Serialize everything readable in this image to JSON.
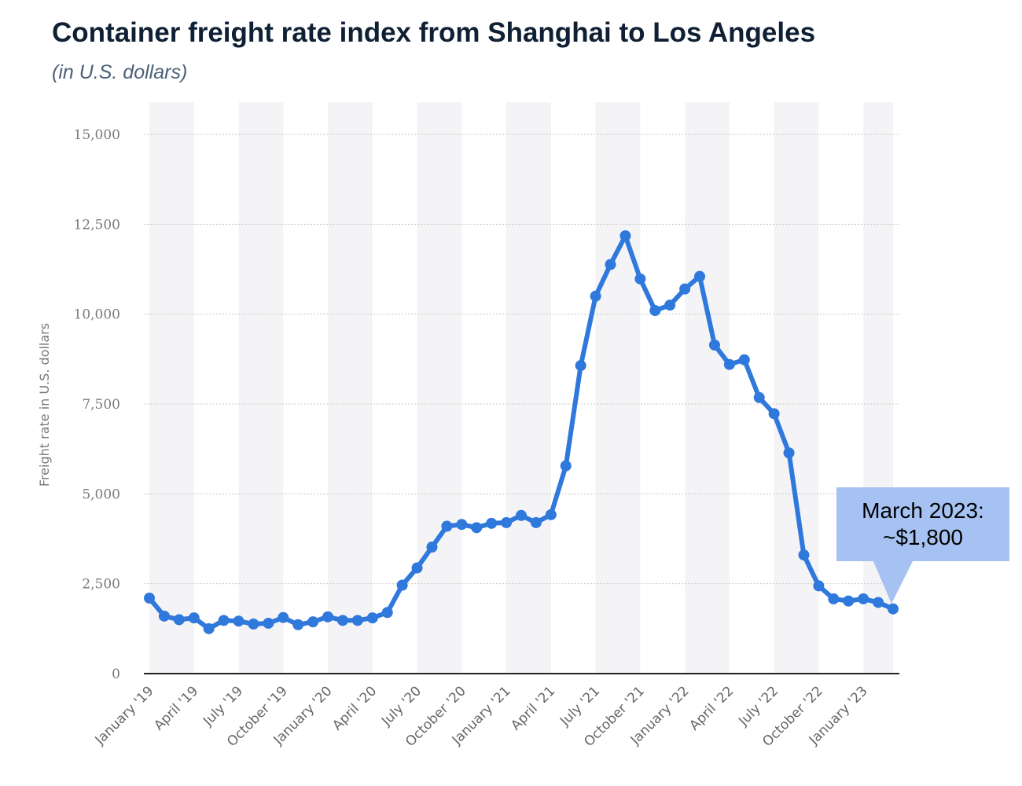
{
  "title": "Container freight rate index from Shanghai to Los Angeles",
  "subtitle": "(in U.S. dollars)",
  "annotation": {
    "line1": "March 2023:",
    "line2": "~$1,800"
  },
  "colors": {
    "line": "#2f78dc",
    "callout": "#a5c2f3",
    "band": "#f4f4f6",
    "grid": "#c8c8c8"
  },
  "chart_data": {
    "type": "line",
    "title": "Container freight rate index from Shanghai to Los Angeles",
    "subtitle": "(in U.S. dollars)",
    "xlabel": "",
    "ylabel": "Freight rate in U.S. dollars",
    "ylim": [
      0,
      15000
    ],
    "yticks": [
      0,
      2500,
      5000,
      7500,
      10000,
      12500,
      15000
    ],
    "ytick_labels": [
      "0",
      "2,500",
      "5,000",
      "7,500",
      "10,000",
      "12,500",
      "15,000"
    ],
    "xtick_labels": [
      "January '19",
      "April '19",
      "July '19",
      "October '19",
      "January '20",
      "April '20",
      "July '20",
      "October '20",
      "January '21",
      "April '21",
      "July '21",
      "October '21",
      "January '22",
      "April '22",
      "July '22",
      "October '22",
      "January '23"
    ],
    "grid": "horizontal dotted",
    "series": [
      {
        "x": [
          "2019-01",
          "2019-02",
          "2019-03",
          "2019-04",
          "2019-05",
          "2019-06",
          "2019-07",
          "2019-08",
          "2019-09",
          "2019-10",
          "2019-11",
          "2019-12",
          "2020-01",
          "2020-02",
          "2020-03",
          "2020-04",
          "2020-05",
          "2020-06",
          "2020-07",
          "2020-08",
          "2020-09",
          "2020-10",
          "2020-11",
          "2020-12",
          "2021-01",
          "2021-02",
          "2021-03",
          "2021-04",
          "2021-05",
          "2021-06",
          "2021-07",
          "2021-08",
          "2021-09",
          "2021-10",
          "2021-11",
          "2021-12",
          "2022-01",
          "2022-02",
          "2022-03",
          "2022-04",
          "2022-05",
          "2022-06",
          "2022-07",
          "2022-08",
          "2022-09",
          "2022-10",
          "2022-11",
          "2022-12",
          "2023-01",
          "2023-02",
          "2023-03"
        ],
        "values": [
          2100,
          1600,
          1500,
          1550,
          1250,
          1480,
          1460,
          1380,
          1400,
          1560,
          1360,
          1440,
          1580,
          1480,
          1480,
          1550,
          1700,
          2460,
          2940,
          3520,
          4100,
          4150,
          4060,
          4180,
          4200,
          4400,
          4200,
          4420,
          5780,
          8570,
          10500,
          11380,
          12180,
          10980,
          10100,
          10250,
          10700,
          11050,
          9140,
          8600,
          8730,
          7680,
          7230,
          6140,
          3300,
          2440,
          2080,
          2020,
          2080,
          1980,
          1800
        ]
      }
    ]
  }
}
